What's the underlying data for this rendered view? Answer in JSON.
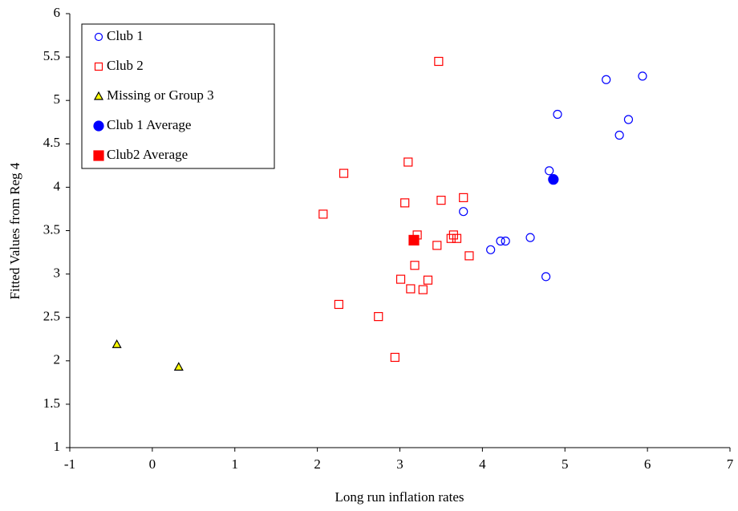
{
  "chart_data": {
    "type": "scatter",
    "x_label": "Long run inflation rates",
    "y_label": "Fitted Values from Reg 4",
    "xlim": [
      -1,
      7
    ],
    "xticks": [
      -1,
      0,
      1,
      2,
      3,
      4,
      5,
      6,
      7
    ],
    "ylim": [
      1,
      6
    ],
    "yticks": [
      1,
      1.5,
      2,
      2.5,
      3,
      3.5,
      4,
      4.5,
      5,
      5.5,
      6
    ],
    "grid": false,
    "legend_position": "upper left",
    "series": [
      {
        "name": "Club 1",
        "color": "#0000ff",
        "marker": "circle",
        "filled": false,
        "x": [
          5.94,
          5.5,
          4.91,
          5.77,
          5.66,
          4.81,
          3.77,
          4.58,
          4.22,
          4.28,
          4.1,
          4.77
        ],
        "y": [
          5.28,
          5.24,
          4.84,
          4.78,
          4.6,
          4.19,
          3.72,
          3.42,
          3.38,
          3.38,
          3.28,
          2.97
        ]
      },
      {
        "name": "Club 2",
        "color": "#ff0000",
        "marker": "square",
        "filled": false,
        "x": [
          3.47,
          3.1,
          2.32,
          3.77,
          3.5,
          3.06,
          2.07,
          3.21,
          3.65,
          3.62,
          3.69,
          3.45,
          3.84,
          3.18,
          3.01,
          3.34,
          3.13,
          3.28,
          2.26,
          2.74,
          2.94
        ],
        "y": [
          5.45,
          4.29,
          4.16,
          3.88,
          3.85,
          3.82,
          3.69,
          3.45,
          3.45,
          3.41,
          3.41,
          3.33,
          3.21,
          3.1,
          2.94,
          2.93,
          2.83,
          2.82,
          2.65,
          2.51,
          2.04
        ]
      },
      {
        "name": "Missing or Group 3",
        "color": "#ffff00",
        "marker": "triangle",
        "filled": true,
        "x": [
          -0.43,
          0.32
        ],
        "y": [
          2.19,
          1.93
        ]
      },
      {
        "name": "Club 1 Average",
        "color": "#0000ff",
        "marker": "circle",
        "filled": true,
        "x": [
          4.86
        ],
        "y": [
          4.09
        ]
      },
      {
        "name": "Club2 Average",
        "color": "#ff0000",
        "marker": "square",
        "filled": true,
        "x": [
          3.17
        ],
        "y": [
          3.39
        ]
      }
    ]
  }
}
